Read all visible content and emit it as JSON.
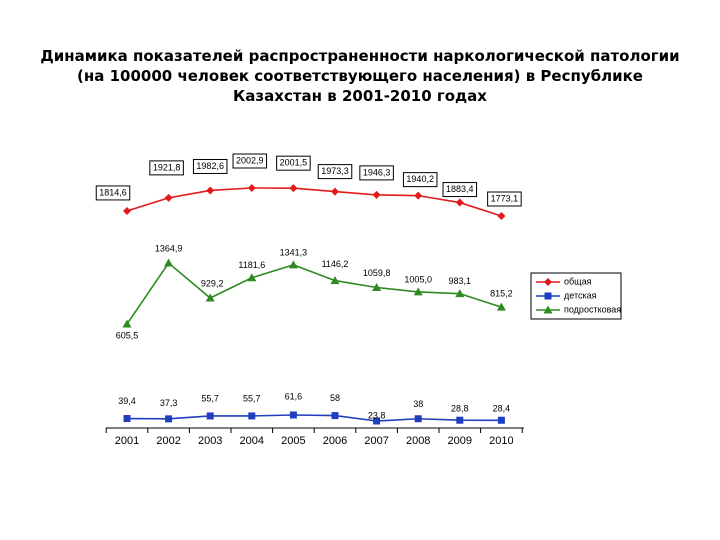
{
  "chart_data": {
    "type": "line",
    "title": "Динамика показателей распространенности наркологической патологии (на 100000 человек соответствующего населения) в Республике Казахстан в 2001-2010 годах",
    "x": [
      "2001",
      "2002",
      "2003",
      "2004",
      "2005",
      "2006",
      "2007",
      "2008",
      "2009",
      "2010"
    ],
    "series": [
      {
        "name": "общая",
        "color": "#e31a1c",
        "marker": "diamond",
        "values": [
          1814.6,
          1921.8,
          1982.6,
          2002.9,
          2001.5,
          1973.3,
          1946.3,
          1940.2,
          1883.4,
          1773.1
        ],
        "labels": [
          "1814,6",
          "1921,8",
          "1982,6",
          "2002,9",
          "2001,5",
          "1973,3",
          "1946,3",
          "1940,2",
          "1883,4",
          "1773,1"
        ],
        "boxed_labels": true
      },
      {
        "name": "детская",
        "color": "#1f3fbf",
        "marker": "square",
        "values": [
          39.4,
          37.3,
          55.7,
          55.7,
          61.6,
          58,
          23.8,
          38,
          28.8,
          28.4
        ],
        "labels": [
          "39,4",
          "37,3",
          "55,7",
          "55,7",
          "61,6",
          "58",
          "23,8",
          "38",
          "28,8",
          "28,4"
        ],
        "boxed_labels": false
      },
      {
        "name": "подростковая",
        "color": "#2e8b22",
        "marker": "triangle",
        "values": [
          605.5,
          1364.9,
          929.2,
          1181.6,
          1341.3,
          1146.2,
          1059.8,
          1005.0,
          983.1,
          815.2
        ],
        "labels": [
          "605,5",
          "1364,9",
          "929,2",
          "1181,6",
          "1341,3",
          "1146,2",
          "1059,8",
          "1005,0",
          "983,1",
          "815,2"
        ],
        "boxed_labels": false
      }
    ],
    "legend_position": "right",
    "grid": false
  }
}
